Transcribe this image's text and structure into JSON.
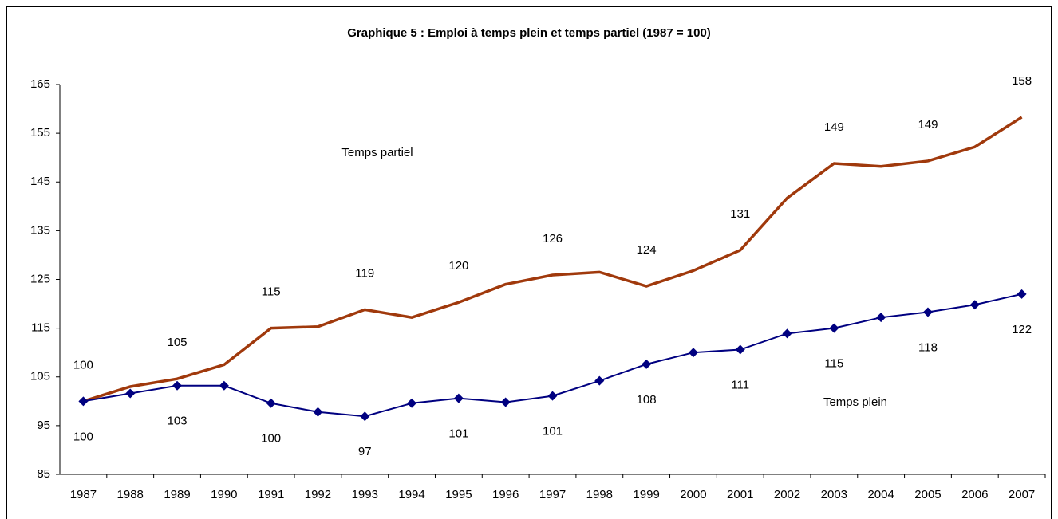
{
  "chart_data": {
    "type": "line",
    "title": "Graphique 5 : Emploi à temps plein et temps partiel (1987 = 100)",
    "categories": [
      "1987",
      "1988",
      "1989",
      "1990",
      "1991",
      "1992",
      "1993",
      "1994",
      "1995",
      "1996",
      "1997",
      "1998",
      "1999",
      "2000",
      "2001",
      "2002",
      "2003",
      "2004",
      "2005",
      "2006",
      "2007"
    ],
    "series": [
      {
        "name": "Temps partiel",
        "color": "#a0390c",
        "marker": null,
        "label_side": "above",
        "values": [
          100,
          103,
          104.6,
          107.5,
          115,
          115.3,
          118.8,
          117.2,
          120.3,
          124,
          125.9,
          126.5,
          123.6,
          126.8,
          131,
          141.7,
          148.8,
          148.2,
          149.3,
          152.2,
          158.3
        ],
        "value_labels": [
          "100",
          null,
          "105",
          null,
          "115",
          null,
          "119",
          null,
          "120",
          null,
          "126",
          null,
          "124",
          null,
          "131",
          null,
          "149",
          null,
          "149",
          null,
          "158"
        ]
      },
      {
        "name": "Temps plein",
        "color": "#000080",
        "marker": "diamond",
        "label_side": "below",
        "values": [
          100,
          101.6,
          103.2,
          103.2,
          99.6,
          97.8,
          96.9,
          99.6,
          100.6,
          99.8,
          101.1,
          104.2,
          107.6,
          110,
          110.6,
          113.9,
          115,
          117.2,
          118.3,
          119.8,
          122
        ],
        "value_labels": [
          "100",
          null,
          "103",
          null,
          "100",
          null,
          "97",
          null,
          "101",
          null,
          "101",
          null,
          "108",
          null,
          "111",
          null,
          "115",
          null,
          "118",
          null,
          "122"
        ]
      }
    ],
    "ylim": [
      85,
      165
    ],
    "yticks": [
      85,
      95,
      105,
      115,
      125,
      135,
      145,
      155,
      165
    ],
    "grid": false
  }
}
